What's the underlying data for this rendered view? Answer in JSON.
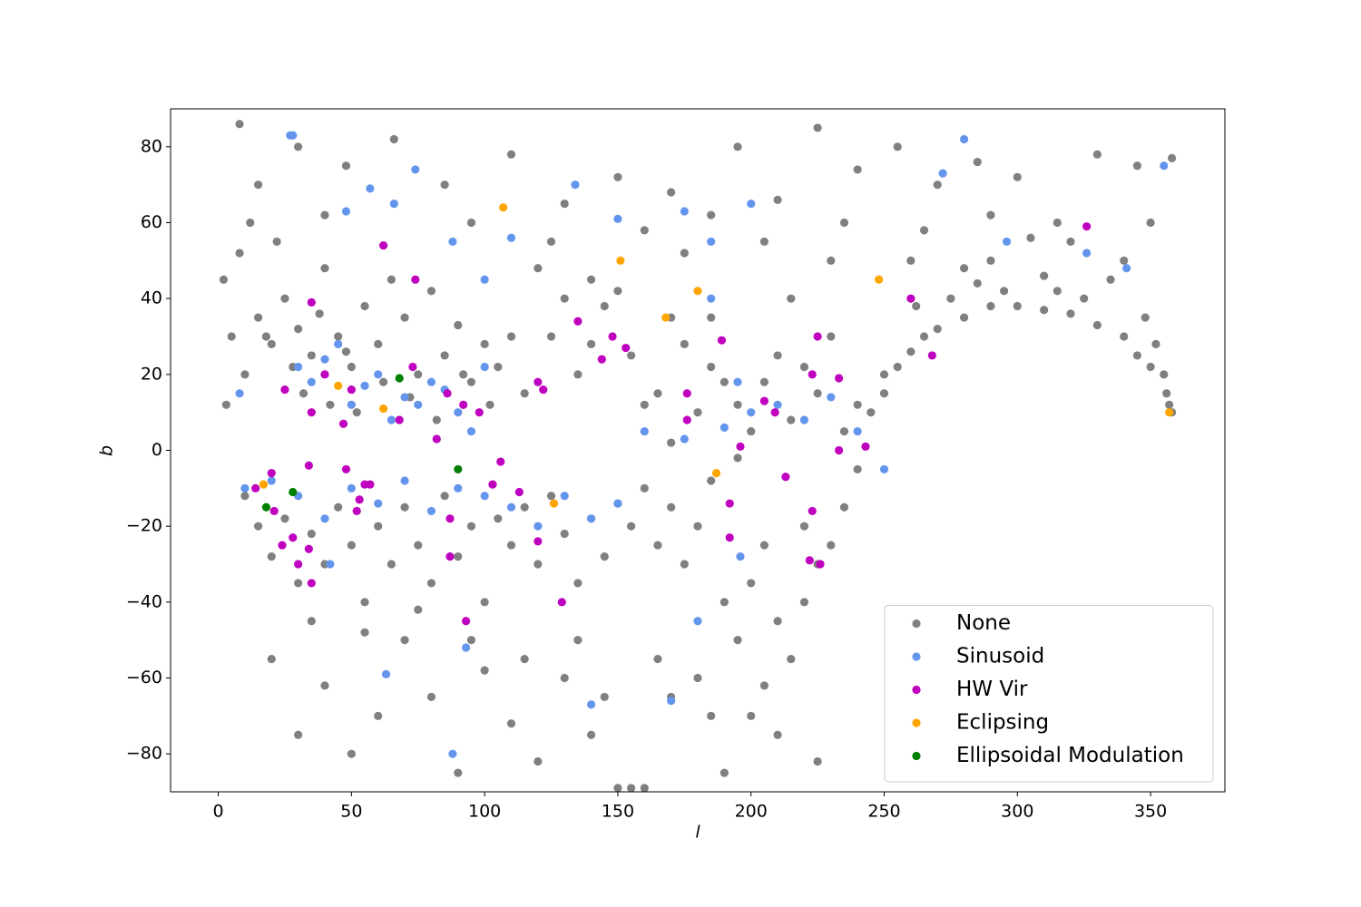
{
  "chart_data": {
    "type": "scatter",
    "xlabel": "l",
    "ylabel": "b",
    "xlim": [
      -17.9,
      377.9
    ],
    "ylim": [
      -90,
      90
    ],
    "xticks": [
      0,
      50,
      100,
      150,
      200,
      250,
      300,
      350
    ],
    "yticks": [
      {
        "value": -80,
        "label": "−80"
      },
      {
        "value": -60,
        "label": "−60"
      },
      {
        "value": -40,
        "label": "−40"
      },
      {
        "value": -20,
        "label": "−20"
      },
      0,
      20,
      40,
      60,
      80
    ],
    "legend": "lower right",
    "series": [
      {
        "name": "None",
        "color": "#808080",
        "x": [
          2,
          5,
          8,
          10,
          15,
          20,
          25,
          30,
          35,
          40,
          45,
          50,
          55,
          60,
          65,
          70,
          75,
          80,
          85,
          90,
          95,
          100,
          105,
          110,
          115,
          3,
          12,
          22,
          32,
          42,
          52,
          62,
          72,
          82,
          92,
          102,
          18,
          28,
          38,
          48,
          8,
          30,
          48,
          66,
          85,
          110,
          130,
          150,
          170,
          195,
          210,
          225,
          240,
          255,
          270,
          285,
          300,
          315,
          330,
          345,
          358,
          15,
          40,
          95,
          125,
          160,
          185,
          205,
          235,
          265,
          290,
          320,
          350,
          140,
          120,
          175,
          230,
          260,
          280,
          305,
          125,
          135,
          145,
          155,
          165,
          175,
          185,
          195,
          205,
          215,
          225,
          235,
          245,
          130,
          150,
          170,
          190,
          210,
          230,
          240,
          200,
          180,
          160,
          140,
          220,
          250,
          185,
          215,
          170,
          195,
          250,
          255,
          260,
          265,
          270,
          280,
          290,
          300,
          310,
          320,
          330,
          340,
          345,
          350,
          355,
          357,
          358,
          356,
          352,
          348,
          275,
          285,
          295,
          315,
          325,
          335,
          262,
          290,
          310,
          340,
          10,
          15,
          20,
          25,
          30,
          35,
          40,
          45,
          50,
          55,
          60,
          65,
          70,
          75,
          80,
          85,
          90,
          95,
          100,
          105,
          110,
          115,
          120,
          125,
          130,
          135,
          140,
          145,
          150,
          155,
          160,
          165,
          170,
          175,
          180,
          185,
          190,
          195,
          200,
          205,
          210,
          215,
          220,
          225,
          230,
          235,
          240,
          180,
          200,
          220,
          20,
          30,
          40,
          50,
          60,
          70,
          80,
          90,
          100,
          110,
          120,
          130,
          140,
          150,
          155,
          160,
          170,
          190,
          210,
          225,
          35,
          55,
          75,
          95,
          115,
          135,
          145,
          165,
          185,
          205
        ],
        "values": [
          45,
          30,
          52,
          20,
          35,
          28,
          40,
          32,
          25,
          48,
          30,
          22,
          38,
          28,
          45,
          35,
          20,
          42,
          25,
          33,
          18,
          28,
          22,
          30,
          15,
          12,
          60,
          55,
          15,
          12,
          10,
          18,
          14,
          8,
          20,
          12,
          30,
          22,
          36,
          26,
          86,
          80,
          75,
          82,
          70,
          78,
          65,
          72,
          68,
          80,
          66,
          85,
          74,
          80,
          70,
          76,
          72,
          60,
          78,
          75,
          77,
          70,
          62,
          60,
          55,
          58,
          62,
          55,
          60,
          58,
          62,
          55,
          60,
          45,
          48,
          52,
          50,
          50,
          48,
          56,
          30,
          20,
          38,
          25,
          15,
          28,
          22,
          12,
          18,
          8,
          15,
          5,
          10,
          40,
          42,
          35,
          18,
          25,
          30,
          12,
          5,
          10,
          12,
          28,
          22,
          20,
          35,
          40,
          2,
          -2,
          15,
          22,
          26,
          30,
          32,
          35,
          38,
          38,
          37,
          36,
          33,
          30,
          25,
          22,
          20,
          12,
          10,
          15,
          28,
          35,
          40,
          44,
          42,
          42,
          40,
          45,
          38,
          50,
          46,
          50,
          -12,
          -20,
          -28,
          -18,
          -35,
          -22,
          -30,
          -15,
          -25,
          -40,
          -20,
          -30,
          -15,
          -25,
          -35,
          -12,
          -28,
          -20,
          -40,
          -18,
          -25,
          -15,
          -30,
          -12,
          -22,
          -35,
          -18,
          -28,
          -14,
          -20,
          -10,
          -25,
          -15,
          -30,
          -20,
          -8,
          -40,
          -50,
          -35,
          -25,
          -45,
          -55,
          -20,
          -30,
          -25,
          -15,
          -5,
          -60,
          -70,
          -40,
          -55,
          -75,
          -62,
          -80,
          -70,
          -50,
          -65,
          -85,
          -58,
          -72,
          -82,
          -60,
          -75,
          -89,
          -89,
          -89,
          -65,
          -85,
          -75,
          -82,
          -45,
          -48,
          -42,
          -50,
          -55,
          -50,
          -65,
          -55,
          -70,
          -62
        ]
      },
      {
        "name": "Sinusoid",
        "color": "#6495ed",
        "x": [
          27,
          28,
          48,
          57,
          74,
          66,
          88,
          100,
          110,
          134,
          150,
          175,
          185,
          200,
          280,
          272,
          296,
          326,
          341,
          355,
          8,
          40,
          50,
          60,
          70,
          80,
          90,
          100,
          55,
          65,
          75,
          85,
          95,
          45,
          35,
          30,
          160,
          175,
          190,
          200,
          210,
          220,
          230,
          240,
          185,
          195,
          20,
          30,
          40,
          50,
          60,
          70,
          80,
          90,
          100,
          110,
          120,
          130,
          140,
          150,
          10,
          42,
          63,
          88,
          93,
          140,
          170,
          180,
          196,
          250
        ],
        "values": [
          83,
          83,
          63,
          69,
          74,
          65,
          55,
          45,
          56,
          70,
          61,
          63,
          55,
          65,
          82,
          73,
          55,
          52,
          48,
          75,
          15,
          24,
          12,
          20,
          14,
          18,
          10,
          22,
          17,
          8,
          12,
          16,
          5,
          28,
          18,
          22,
          5,
          3,
          6,
          10,
          12,
          8,
          14,
          5,
          40,
          18,
          -8,
          -12,
          -18,
          -10,
          -14,
          -8,
          -16,
          -10,
          -12,
          -15,
          -20,
          -12,
          -18,
          -14,
          -10,
          -30,
          -59,
          -80,
          -52,
          -67,
          -66,
          -45,
          -28,
          -5
        ]
      },
      {
        "name": "HW Vir",
        "color": "#bf00bf",
        "x": [
          62,
          35,
          74,
          326,
          260,
          268,
          225,
          189,
          148,
          153,
          135,
          40,
          50,
          73,
          82,
          86,
          92,
          98,
          25,
          35,
          47,
          68,
          120,
          122,
          144,
          223,
          233,
          205,
          209,
          196,
          233,
          243,
          176,
          176,
          34,
          48,
          53,
          55,
          57,
          52,
          20,
          21,
          14,
          24,
          28,
          34,
          30,
          35,
          103,
          106,
          113,
          120,
          129,
          87,
          87,
          93,
          192,
          192,
          213,
          222,
          223,
          226
        ],
        "values": [
          54,
          39,
          45,
          59,
          40,
          25,
          30,
          29,
          30,
          27,
          34,
          20,
          16,
          22,
          3,
          15,
          12,
          10,
          16,
          10,
          7,
          8,
          18,
          16,
          24,
          20,
          19,
          13,
          10,
          1,
          0,
          1,
          8,
          15,
          -4,
          -5,
          -13,
          -9,
          -9,
          -16,
          -6,
          -16,
          -10,
          -25,
          -23,
          -26,
          -30,
          -35,
          -9,
          -3,
          -11,
          -24,
          -40,
          -18,
          -28,
          -45,
          -14,
          -23,
          -7,
          -29,
          -16,
          -30
        ]
      },
      {
        "name": "Eclipsing",
        "color": "#ffa500",
        "x": [
          107,
          151,
          180,
          168,
          248,
          45,
          62,
          17,
          126,
          187,
          357
        ],
        "values": [
          64,
          50,
          42,
          35,
          45,
          17,
          11,
          -9,
          -14,
          -6,
          10
        ]
      },
      {
        "name": "Ellipsoidal Modulation",
        "color": "#008000",
        "x": [
          68,
          90,
          28,
          18
        ],
        "values": [
          19,
          -5,
          -11,
          -15
        ]
      }
    ]
  }
}
